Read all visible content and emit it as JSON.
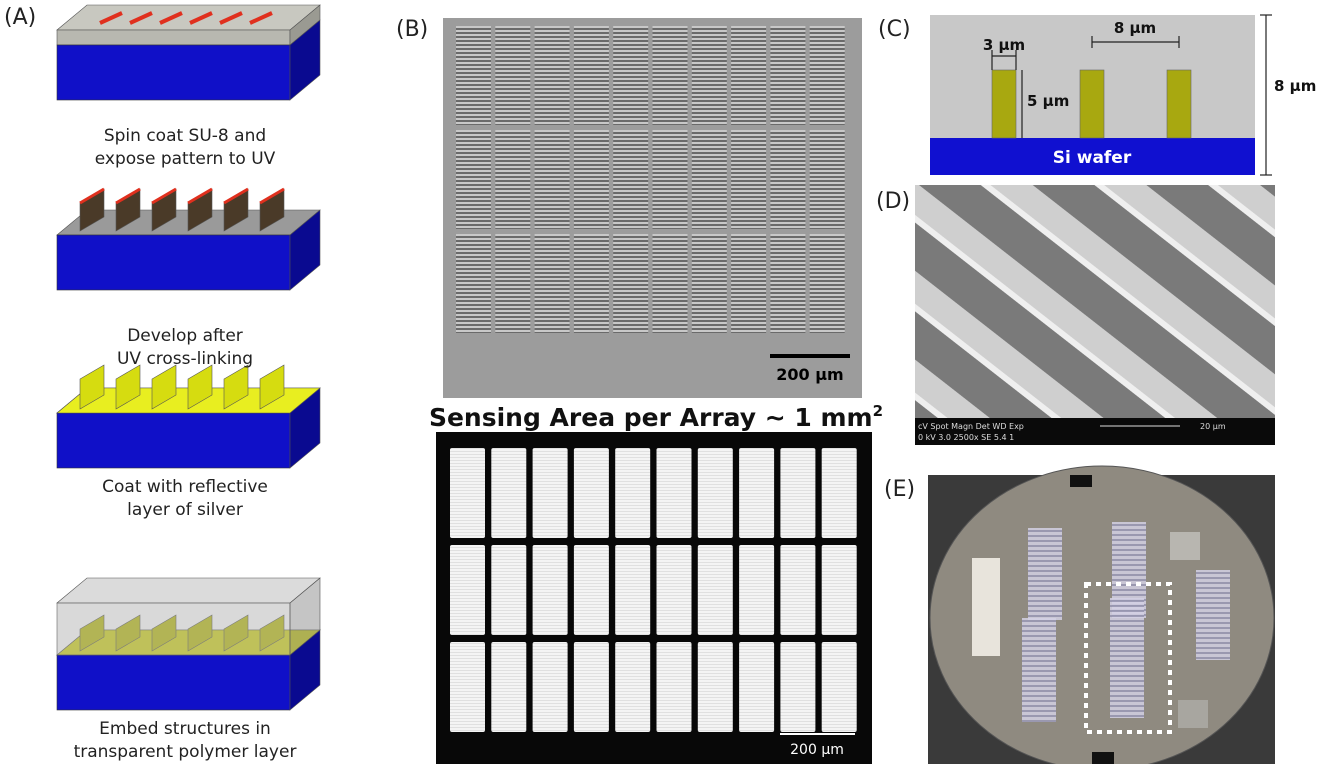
{
  "panels": {
    "a": {
      "label": "(A)",
      "steps": [
        {
          "caption": [
            "Spin coat SU-8 and",
            "expose pattern to UV"
          ]
        },
        {
          "caption": [
            "Develop after",
            "UV cross-linking"
          ]
        },
        {
          "caption": [
            "Coat with reflective",
            "layer of silver"
          ]
        },
        {
          "caption": [
            "Embed structures in",
            "transparent polymer layer"
          ]
        }
      ]
    },
    "b": {
      "label": "(B)",
      "scale_bar": "200 µm",
      "title": {
        "text": "Sensing Area per Array ~ 1 mm",
        "superscript": "2"
      },
      "fluorescence_scale_bar": "200 µm"
    },
    "c": {
      "label": "(C)",
      "width_label": "3 µm",
      "pitch_label": "8 µm",
      "height_label": "5 µm",
      "total_height_label": "8 µm",
      "substrate_label": "Si wafer"
    },
    "d": {
      "label": "(D)",
      "info_header": "cV  Spot Magn    Det  WD  Exp",
      "info_values": "0 kV 3.0  2500x    SE  5.4  1",
      "scale_bar": "20 µm"
    },
    "e": {
      "label": "(E)"
    }
  }
}
